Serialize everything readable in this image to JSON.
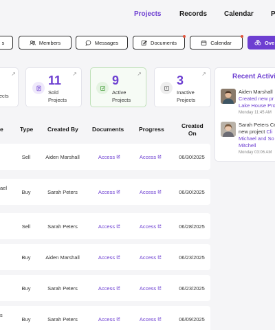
{
  "nav": {
    "items": [
      {
        "label": "Projects",
        "active": true
      },
      {
        "label": "Records",
        "active": false
      },
      {
        "label": "Calendar",
        "active": false
      },
      {
        "label": "P",
        "active": false
      }
    ]
  },
  "tabs": {
    "partial": "s",
    "members": "Members",
    "messages": "Messages",
    "documents": "Documents",
    "calendar": "Calendar",
    "primary": "Ove"
  },
  "cards": {
    "first_label": "ojects",
    "sold": {
      "value": "11",
      "label_l1": "Sold",
      "label_l2": "Projects"
    },
    "active": {
      "value": "9",
      "label_l1": "Active",
      "label_l2": "Projects"
    },
    "inactive": {
      "value": "3",
      "label_l1": "Inactive",
      "label_l2": "Projects"
    }
  },
  "table": {
    "headers": {
      "name": "e",
      "type": "Type",
      "created_by": "Created By",
      "documents": "Documents",
      "progress": "Progress",
      "created_on_l1": "Created",
      "created_on_l2": "On"
    },
    "access_label": "Access",
    "rows": [
      {
        "name": "",
        "type": "Sell",
        "created_by": "Aiden Marshall",
        "created_on": "06/30/2025"
      },
      {
        "name": "ael",
        "type": "Buy",
        "created_by": "Sarah Peters",
        "created_on": "06/30/2025"
      },
      {
        "name": "",
        "type": "Sell",
        "created_by": "Sarah Peters",
        "created_on": "06/28/2025"
      },
      {
        "name": "",
        "type": "Buy",
        "created_by": "Aiden Marshall",
        "created_on": "06/23/2025"
      },
      {
        "name": "",
        "type": "Buy",
        "created_by": "Sarah Peters",
        "created_on": "06/23/2025"
      },
      {
        "name": "s",
        "type": "Buy",
        "created_by": "Sarah Peters",
        "created_on": "06/09/2025"
      }
    ]
  },
  "activity": {
    "title": "Recent Activit",
    "items": [
      {
        "name": "Aiden Marshall",
        "line2": "Created new pr",
        "line3": "Lake House Pro",
        "time": "Monday 11:45 AM"
      },
      {
        "name": "Sarah Peters",
        "name_suffix": " Cr",
        "line2_plain": "new project ",
        "line2_link": "Cli",
        "line3": "Michael and So",
        "line4": "Mitchell",
        "time": "Monday 03:06 AM"
      }
    ]
  },
  "colors": {
    "accent": "#6d3fd1",
    "badge": "#e0533b",
    "green_card_border": "#bfe0b8"
  }
}
